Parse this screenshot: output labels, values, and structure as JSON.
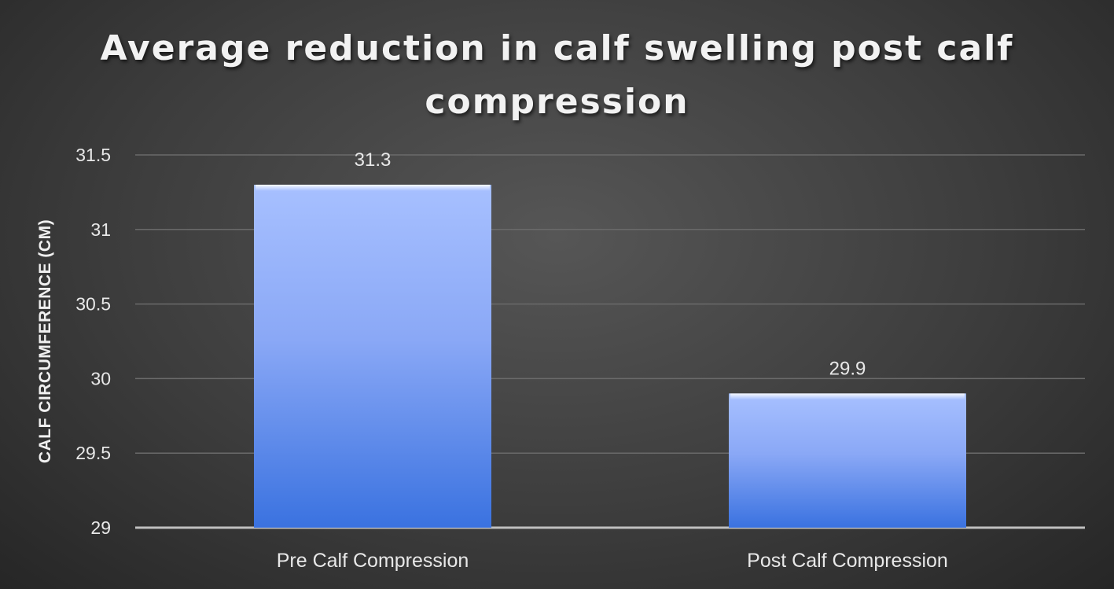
{
  "chart_data": {
    "type": "bar",
    "title_lines": [
      "Average reduction in calf swelling post calf",
      "compression"
    ],
    "ylabel": "CALF CIRCUMFERENCE (CM)",
    "xlabel": "",
    "categories": [
      "Pre Calf Compression",
      "Post Calf Compression"
    ],
    "values": [
      31.3,
      29.9
    ],
    "data_labels": [
      "31.3",
      "29.9"
    ],
    "ylim": [
      29,
      31.5
    ],
    "yticks": [
      29,
      29.5,
      30,
      30.5,
      31,
      31.5
    ],
    "ytick_labels": [
      "29",
      "29.5",
      "30",
      "30.5",
      "31",
      "31.5"
    ],
    "grid": true,
    "legend": "none",
    "colors": {
      "bar_top": "#a7c0ff",
      "bar_bottom": "#3a72e0",
      "grid": "#6a6a6a",
      "axis": "#bfbfbf",
      "text": "#e8e8e8"
    }
  }
}
